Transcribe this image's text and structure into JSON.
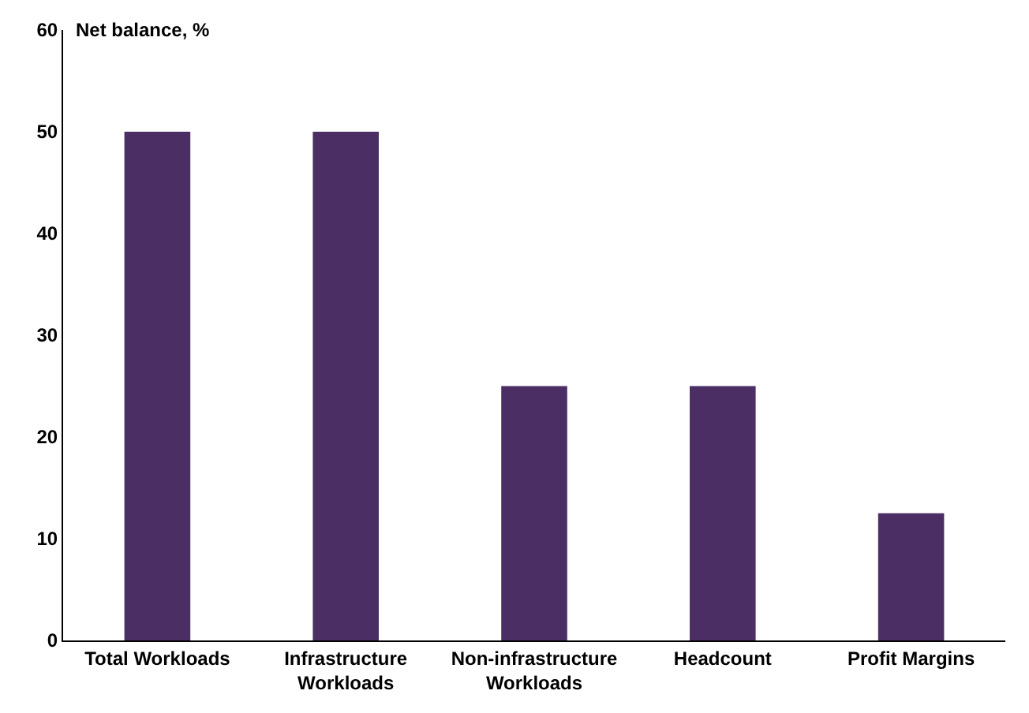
{
  "chart_data": {
    "type": "bar",
    "ylabel": "Net balance, %",
    "categories": [
      "Total Workloads",
      "Infrastructure Workloads",
      "Non-infrastructure Workloads",
      "Headcount",
      "Profit Margins"
    ],
    "values": [
      50,
      50,
      25,
      25,
      12.5
    ],
    "color": "#4b2e63",
    "ylim": [
      0,
      60
    ],
    "yticks": [
      0,
      10,
      20,
      30,
      40,
      50,
      60
    ]
  }
}
